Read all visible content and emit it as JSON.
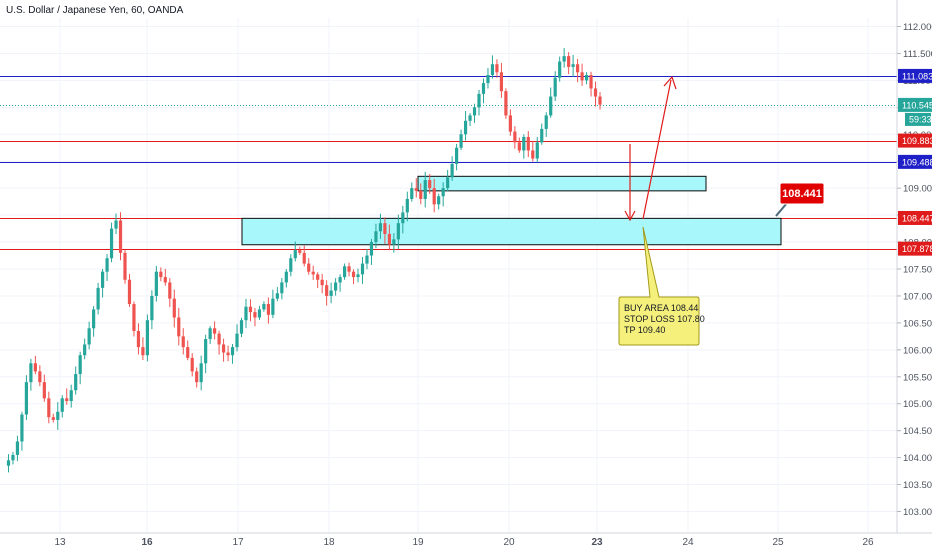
{
  "chart_data": {
    "type": "candlestick",
    "title": "U.S. Dollar / Japanese Yen, 60, OANDA",
    "x_ticks": [
      "13",
      "16",
      "17",
      "18",
      "19",
      "20",
      "23",
      "24",
      "25",
      "26"
    ],
    "y_ticks": [
      "103.000",
      "103.500",
      "104.000",
      "104.500",
      "105.000",
      "105.500",
      "106.000",
      "106.500",
      "107.000",
      "107.500",
      "108.000",
      "108.500",
      "109.000",
      "109.500",
      "110.000",
      "110.500",
      "111.000",
      "111.500",
      "112.000"
    ],
    "ylim": [
      102.85,
      112.25
    ],
    "last_price": 110.545,
    "countdown": "59:33",
    "price_path": [
      103.85,
      103.95,
      104.05,
      104.3,
      104.8,
      105.4,
      105.75,
      105.6,
      105.4,
      105.1,
      104.75,
      104.7,
      104.85,
      105.1,
      105.05,
      105.25,
      105.55,
      105.9,
      106.1,
      106.4,
      106.75,
      107.15,
      107.45,
      107.7,
      108.25,
      108.4,
      107.8,
      107.3,
      106.85,
      106.35,
      106.05,
      105.9,
      106.55,
      107.0,
      107.45,
      107.35,
      107.25,
      106.95,
      106.6,
      106.25,
      106.05,
      105.85,
      105.6,
      105.4,
      105.75,
      106.2,
      106.4,
      106.3,
      106.1,
      105.95,
      105.9,
      106.05,
      106.3,
      106.55,
      106.8,
      106.7,
      106.6,
      106.75,
      106.85,
      106.65,
      106.95,
      107.05,
      107.25,
      107.45,
      107.7,
      107.85,
      107.8,
      107.6,
      107.45,
      107.4,
      107.3,
      107.2,
      107.0,
      107.1,
      107.25,
      107.35,
      107.55,
      107.45,
      107.35,
      107.4,
      107.6,
      107.75,
      108.0,
      108.2,
      108.35,
      108.15,
      107.95,
      108.05,
      108.35,
      108.55,
      108.8,
      109.0,
      108.95,
      108.8,
      109.15,
      109.0,
      108.7,
      108.85,
      109.0,
      109.2,
      109.45,
      109.75,
      110.0,
      110.25,
      110.35,
      110.5,
      110.75,
      110.95,
      111.1,
      111.3,
      111.15,
      110.8,
      110.35,
      110.05,
      109.85,
      109.7,
      109.95,
      109.7,
      109.55,
      109.85,
      110.1,
      110.35,
      110.7,
      111.05,
      111.35,
      111.45,
      111.25,
      111.3,
      111.15,
      111.0,
      111.1,
      110.85,
      110.7,
      110.55
    ],
    "horizontal_lines": [
      {
        "price": 111.083,
        "label": "111.083",
        "color": "#1f1fc7"
      },
      {
        "price": 110.545,
        "label": "110.545",
        "color": "#26a69a",
        "style": "dotted"
      },
      {
        "price": 109.883,
        "label": "109.883",
        "color": "#e01b1b"
      },
      {
        "price": 109.488,
        "label": "109.488",
        "color": "#1f1fc7"
      },
      {
        "price": 108.447,
        "label": "108.447",
        "color": "#e01b1b"
      },
      {
        "price": 107.878,
        "label": "107.878",
        "color": "#e01b1b"
      }
    ],
    "zones": [
      {
        "from_x": "19",
        "to_x": "24+",
        "price_low": 108.95,
        "price_high": 109.22
      },
      {
        "from_x": "17",
        "to_x": "25",
        "price_low": 107.95,
        "price_high": 108.44
      }
    ],
    "callout_price": "108.441",
    "note": {
      "lines": [
        "BUY AREA 108.44",
        "STOP LOSS 107.80",
        "TP 109.40"
      ]
    },
    "colors": {
      "up": "#26a69a",
      "down": "#ef5350",
      "zone_fill": "#a8f7fa",
      "note_fill": "#f7f281"
    }
  }
}
